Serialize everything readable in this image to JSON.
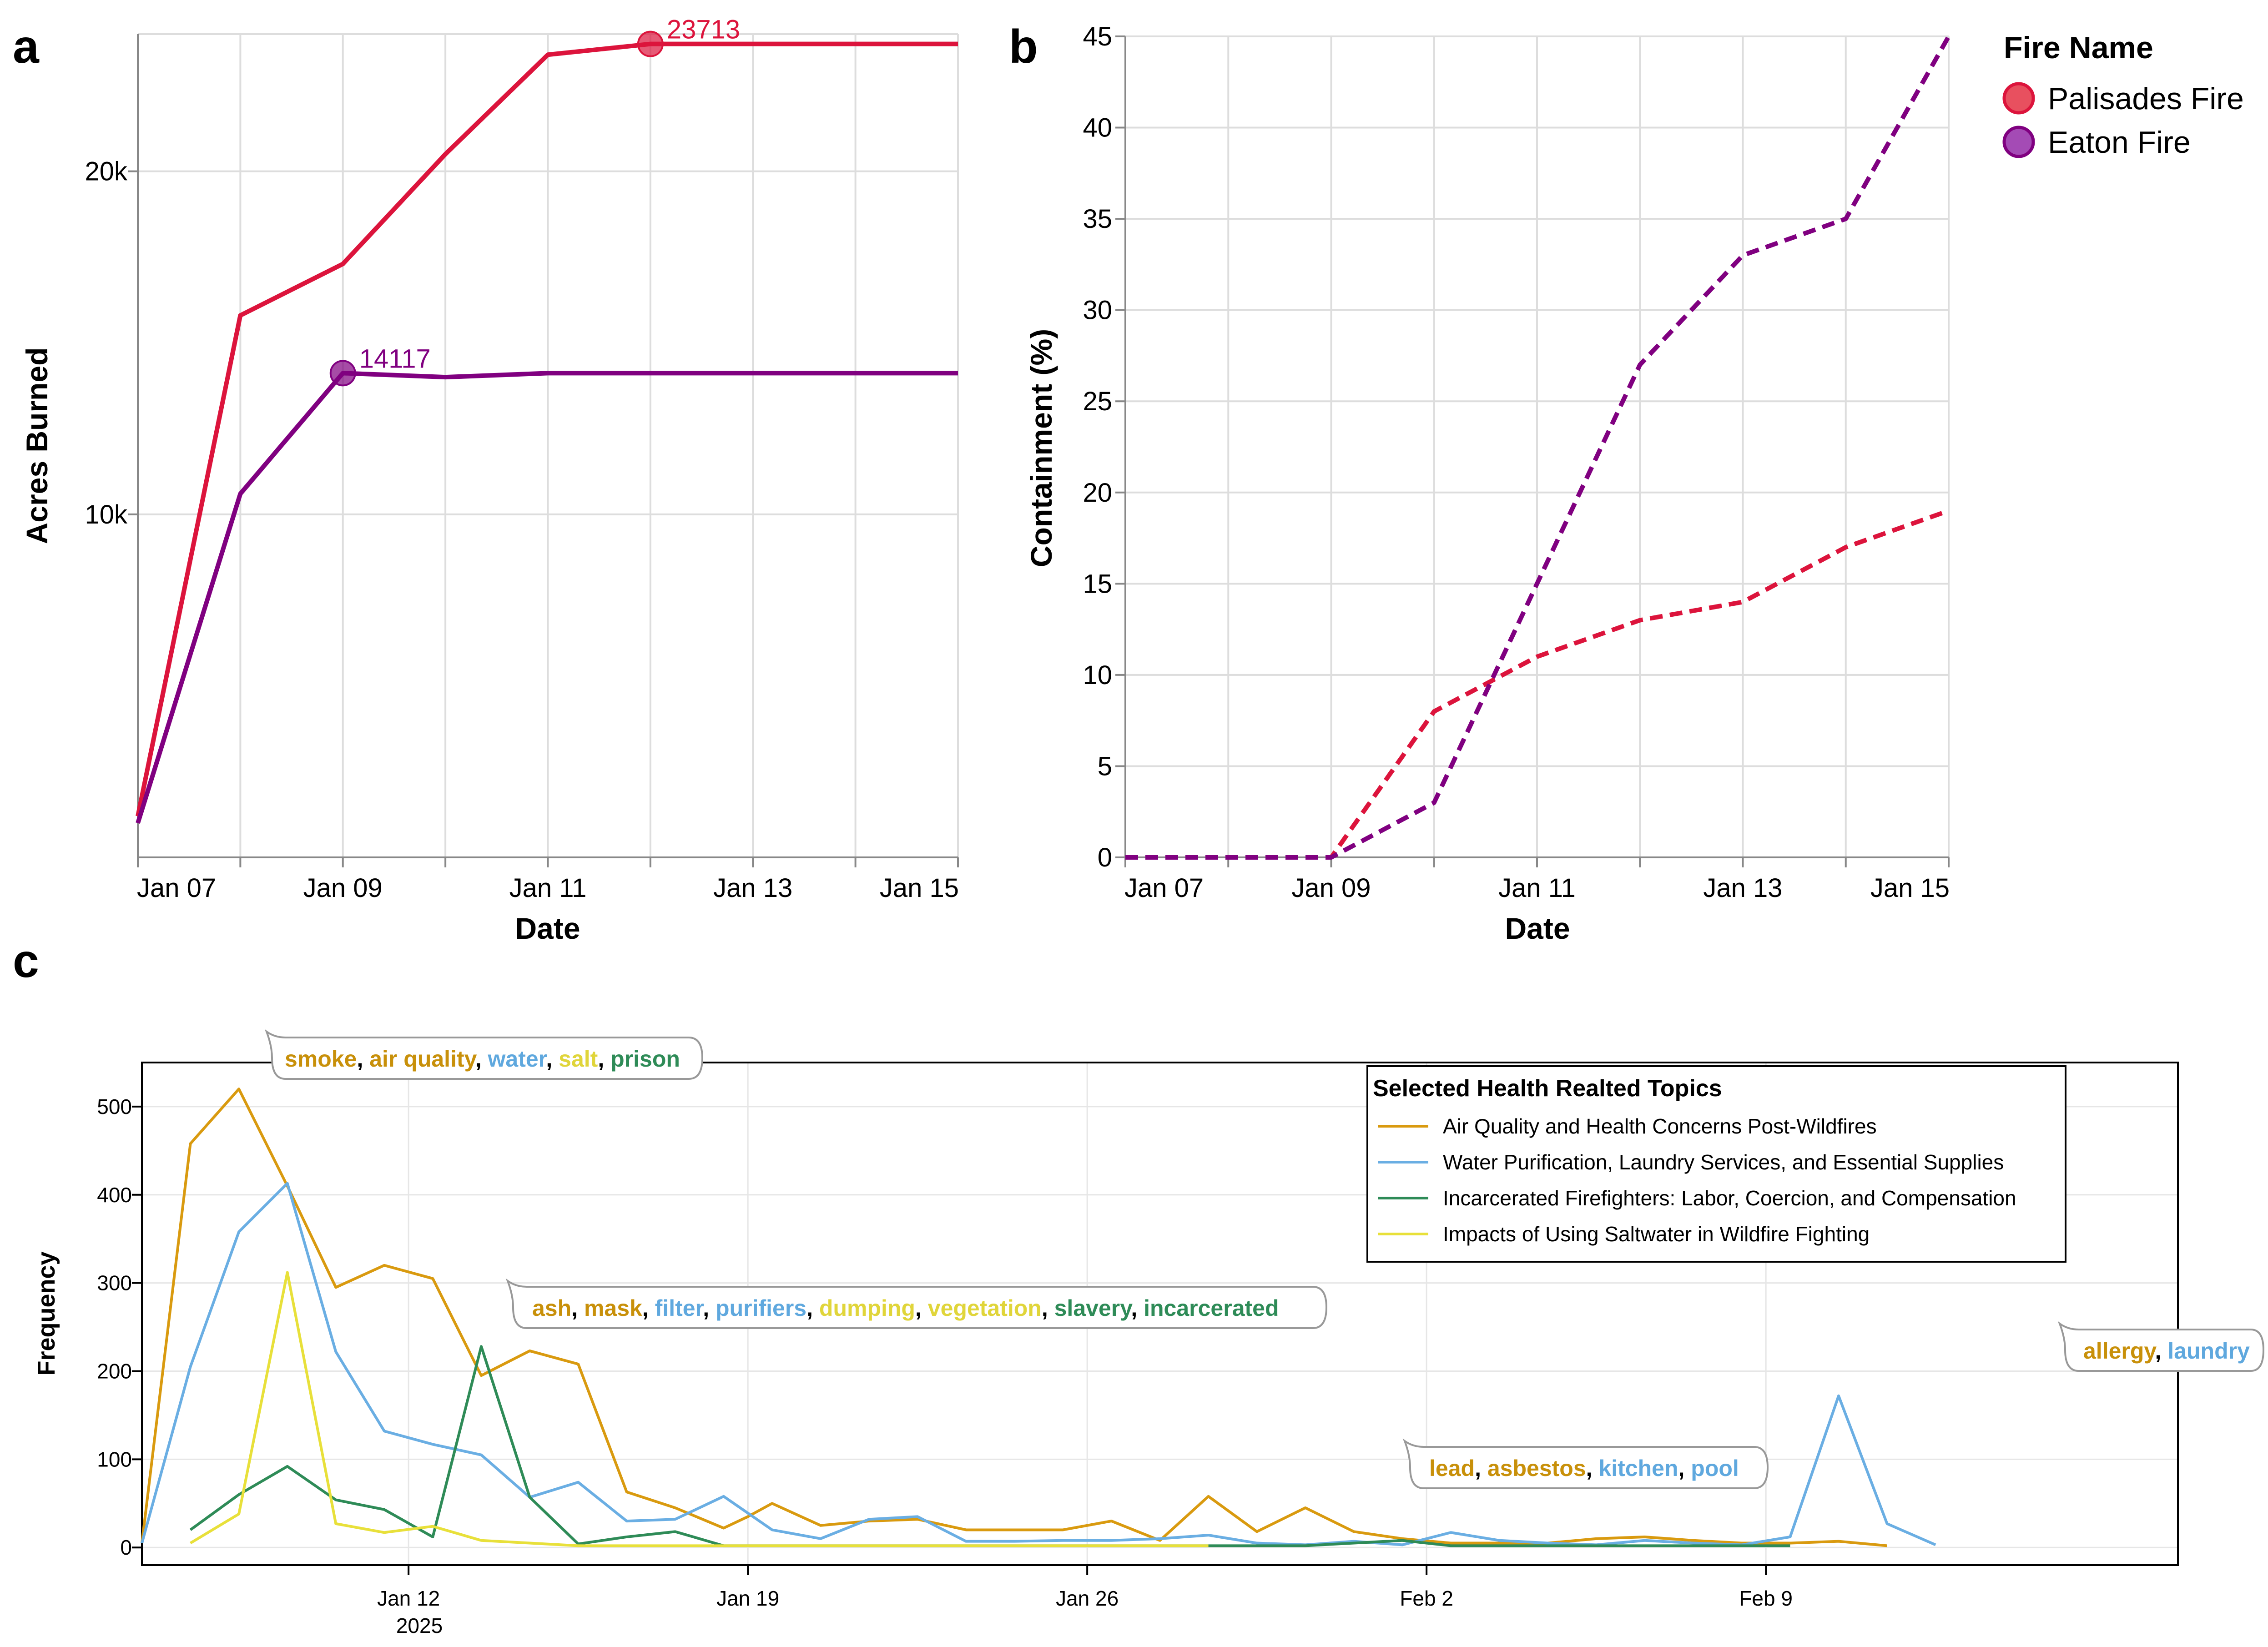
{
  "panels": {
    "a": "a",
    "b": "b",
    "c": "c"
  },
  "chart_data": [
    {
      "id": "a",
      "type": "line",
      "title": "",
      "xlabel": "Date",
      "ylabel": "Acres Burned",
      "xlim": [
        7,
        15
      ],
      "ylim": [
        0,
        24000
      ],
      "x_ticks": [
        7,
        9,
        11,
        13,
        15
      ],
      "x_tick_labels": [
        "Jan 07",
        "Jan 09",
        "Jan 11",
        "Jan 13",
        "Jan 15"
      ],
      "y_ticks": [
        10000,
        20000
      ],
      "y_tick_labels": [
        "10k",
        "20k"
      ],
      "series": [
        {
          "name": "Palisades Fire",
          "color": "#dc143c",
          "x": [
            7,
            8,
            9,
            10,
            11,
            12,
            13,
            14,
            15
          ],
          "values": [
            1200,
            15800,
            17300,
            20500,
            23400,
            23713,
            23713,
            23713,
            23713
          ],
          "highlight": {
            "x": 12,
            "value": 23713,
            "label": "23713"
          }
        },
        {
          "name": "Eaton Fire",
          "color": "#800080",
          "x": [
            7,
            8,
            9,
            10,
            11,
            12,
            13,
            14,
            15
          ],
          "values": [
            1000,
            10600,
            14117,
            14000,
            14117,
            14117,
            14117,
            14117,
            14117
          ],
          "highlight": {
            "x": 9,
            "value": 14117,
            "label": "14117"
          }
        }
      ]
    },
    {
      "id": "b",
      "type": "line",
      "title": "",
      "xlabel": "Date",
      "ylabel": "Containment (%)",
      "xlim": [
        7,
        15
      ],
      "ylim": [
        0,
        45
      ],
      "x_ticks": [
        7,
        9,
        11,
        13,
        15
      ],
      "x_tick_labels": [
        "Jan 07",
        "Jan 09",
        "Jan 11",
        "Jan 13",
        "Jan 15"
      ],
      "y_ticks": [
        0,
        5,
        10,
        15,
        20,
        25,
        30,
        35,
        40,
        45
      ],
      "y_tick_labels": [
        "0",
        "5",
        "10",
        "15",
        "20",
        "25",
        "30",
        "35",
        "40",
        "45"
      ],
      "legend": {
        "title": "Fire Name",
        "position": "top-right"
      },
      "series": [
        {
          "name": "Palisades Fire",
          "color": "#dc143c",
          "dash": true,
          "x": [
            7,
            8,
            9,
            10,
            11,
            12,
            13,
            14,
            15
          ],
          "values": [
            0,
            0,
            0,
            8,
            11,
            13,
            14,
            17,
            19
          ]
        },
        {
          "name": "Eaton Fire",
          "color": "#800080",
          "dash": true,
          "x": [
            7,
            8,
            9,
            10,
            11,
            12,
            13,
            14,
            15
          ],
          "values": [
            0,
            0,
            0,
            3,
            15,
            27,
            33,
            35,
            45
          ]
        }
      ]
    },
    {
      "id": "c",
      "type": "line",
      "title": "",
      "xlabel": "",
      "ylabel": "Frequency",
      "xlim": [
        6.5,
        48.5
      ],
      "ylim": [
        -20,
        550
      ],
      "x_ticks": [
        12,
        19,
        26,
        33,
        40
      ],
      "x_tick_labels": [
        "Jan 12",
        "Jan 19",
        "Jan 26",
        "Feb 2",
        "Feb 9"
      ],
      "x_sub_label": "2025",
      "y_ticks": [
        0,
        100,
        200,
        300,
        400,
        500
      ],
      "y_tick_labels": [
        "0",
        "100",
        "200",
        "300",
        "400",
        "500"
      ],
      "legend": {
        "title": "Selected Health Realted Topics",
        "position": "top-right"
      },
      "series": [
        {
          "name": "Air Quality and Health Concerns Post-Wildfires",
          "color": "#d99a0f",
          "x": [
            6.5,
            7.5,
            8.5,
            9.5,
            10.5,
            11.5,
            12.5,
            13.5,
            14.5,
            15.5,
            16.5,
            17.5,
            18.5,
            19,
            19.5,
            20.5,
            21.5,
            22.5,
            23.5,
            24.5,
            25.5,
            26.5,
            27.5,
            28.5,
            29.5,
            30.5,
            31.5,
            32.5,
            33.5,
            34.5,
            35.5,
            36.5,
            37.5,
            38.5,
            39.5,
            40.5,
            41.5,
            42.5
          ],
          "values": [
            5,
            458,
            520,
            410,
            295,
            320,
            305,
            195,
            223,
            208,
            63,
            45,
            22,
            35,
            50,
            25,
            30,
            32,
            20,
            20,
            20,
            30,
            8,
            58,
            18,
            45,
            18,
            10,
            5,
            5,
            5,
            10,
            12,
            8,
            5,
            5,
            7,
            2
          ]
        },
        {
          "name": "Water Purification, Laundry Services, and Essential Supplies",
          "color": "#6aaee3",
          "x": [
            6.5,
            7.5,
            8.5,
            9.5,
            10.5,
            11.5,
            12.5,
            13.5,
            14.5,
            15.5,
            16.5,
            17.5,
            18.5,
            19.5,
            20.5,
            21.5,
            22.5,
            23.5,
            24.5,
            25.5,
            26.5,
            27.5,
            28.5,
            29.5,
            30.5,
            31.5,
            32.5,
            33.5,
            34.5,
            35.5,
            36.5,
            37.5,
            38.5,
            39.5,
            40.5,
            41.5,
            42.5,
            43.5
          ],
          "values": [
            5,
            205,
            358,
            413,
            222,
            132,
            117,
            105,
            57,
            74,
            30,
            32,
            58,
            20,
            10,
            32,
            35,
            7,
            7,
            8,
            8,
            10,
            14,
            5,
            3,
            7,
            3,
            17,
            8,
            5,
            3,
            8,
            5,
            3,
            12,
            172,
            27,
            3
          ]
        },
        {
          "name": "Incarcerated Firefighters: Labor, Coercion, and Compensation",
          "color": "#2e8b57",
          "x": [
            7.5,
            8.5,
            9.5,
            10.5,
            11.5,
            12.5,
            13.5,
            14.5,
            15.5,
            16.5,
            17.5,
            18.5,
            19.5,
            20.5,
            21.5,
            22.5,
            23.5,
            24.5,
            25.5,
            26.5,
            27.5,
            28.5,
            29.5,
            30.5,
            31.5,
            32.5,
            33.5,
            34.5,
            35.5,
            36.5,
            37.5,
            38.5,
            39.5,
            40.5
          ],
          "values": [
            20,
            60,
            92,
            54,
            43,
            12,
            228,
            57,
            4,
            12,
            18,
            2,
            2,
            2,
            2,
            2,
            2,
            2,
            2,
            2,
            2,
            2,
            2,
            2,
            5,
            8,
            2,
            2,
            2,
            2,
            2,
            2,
            2,
            2
          ]
        },
        {
          "name": "Impacts of Using Saltwater in Wildfire Fighting",
          "color": "#e8e03a",
          "x": [
            7.5,
            8.5,
            9.5,
            10.5,
            11.5,
            12.5,
            13.5,
            14.5,
            15.5,
            16.5,
            17.5,
            18.5,
            19.5,
            20.5,
            21.5,
            22.5,
            23.5,
            24.5,
            25.5,
            26.5,
            27.5,
            28.5
          ],
          "values": [
            5,
            38,
            312,
            27,
            17,
            24,
            8,
            5,
            2,
            2,
            2,
            2,
            2,
            2,
            2,
            2,
            2,
            2,
            2,
            2,
            2,
            2
          ]
        }
      ],
      "annotations": [
        {
          "words": [
            {
              "text": "smoke",
              "color": "#c8900a"
            },
            {
              "text": "air quality",
              "color": "#c8900a"
            },
            {
              "text": "water",
              "color": "#5fa8de"
            },
            {
              "text": "salt",
              "color": "#e0d53a"
            },
            {
              "text": "prison",
              "color": "#2e8b57"
            }
          ]
        },
        {
          "words": [
            {
              "text": "ash",
              "color": "#c8900a"
            },
            {
              "text": "mask",
              "color": "#c8900a"
            },
            {
              "text": "filter",
              "color": "#5fa8de"
            },
            {
              "text": "purifiers",
              "color": "#5fa8de"
            },
            {
              "text": "dumping",
              "color": "#e0d53a"
            },
            {
              "text": "vegetation",
              "color": "#e0d53a"
            },
            {
              "text": "slavery",
              "color": "#2e8b57"
            },
            {
              "text": "incarcerated",
              "color": "#2e8b57"
            }
          ]
        },
        {
          "words": [
            {
              "text": "lead",
              "color": "#c8900a"
            },
            {
              "text": "asbestos",
              "color": "#c8900a"
            },
            {
              "text": "kitchen",
              "color": "#5fa8de"
            },
            {
              "text": "pool",
              "color": "#5fa8de"
            }
          ]
        },
        {
          "words": [
            {
              "text": "allergy",
              "color": "#c8900a"
            },
            {
              "text": "laundry",
              "color": "#5fa8de"
            }
          ]
        }
      ]
    }
  ]
}
